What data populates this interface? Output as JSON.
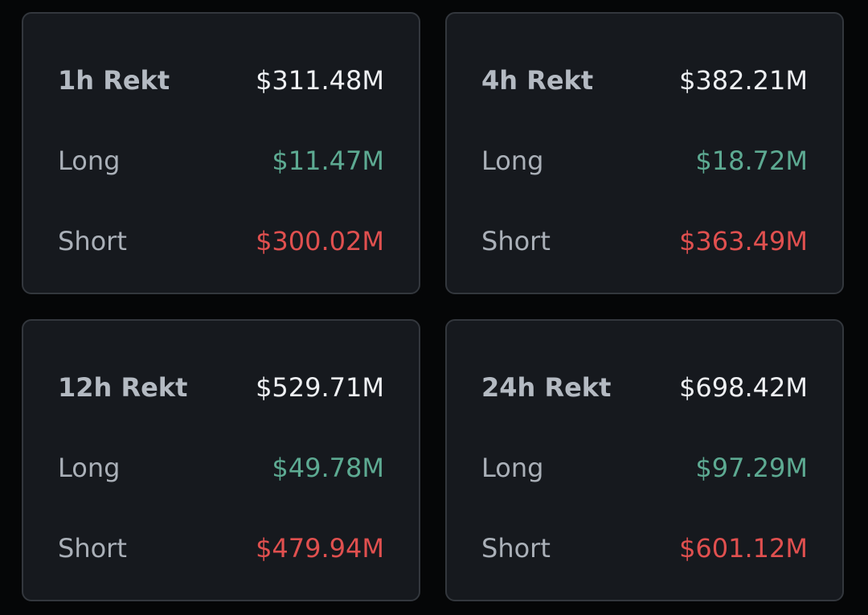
{
  "cards": [
    {
      "title": "1h Rekt",
      "total": "$311.48M",
      "rows": [
        {
          "label": "Long",
          "value": "$11.47M"
        },
        {
          "label": "Short",
          "value": "$300.02M"
        }
      ]
    },
    {
      "title": "4h Rekt",
      "total": "$382.21M",
      "rows": [
        {
          "label": "Long",
          "value": "$18.72M"
        },
        {
          "label": "Short",
          "value": "$363.49M"
        }
      ]
    },
    {
      "title": "12h Rekt",
      "total": "$529.71M",
      "rows": [
        {
          "label": "Long",
          "value": "$49.78M"
        },
        {
          "label": "Short",
          "value": "$479.94M"
        }
      ]
    },
    {
      "title": "24h Rekt",
      "total": "$698.42M",
      "rows": [
        {
          "label": "Long",
          "value": "$97.29M"
        },
        {
          "label": "Short",
          "value": "$601.12M"
        }
      ]
    }
  ]
}
